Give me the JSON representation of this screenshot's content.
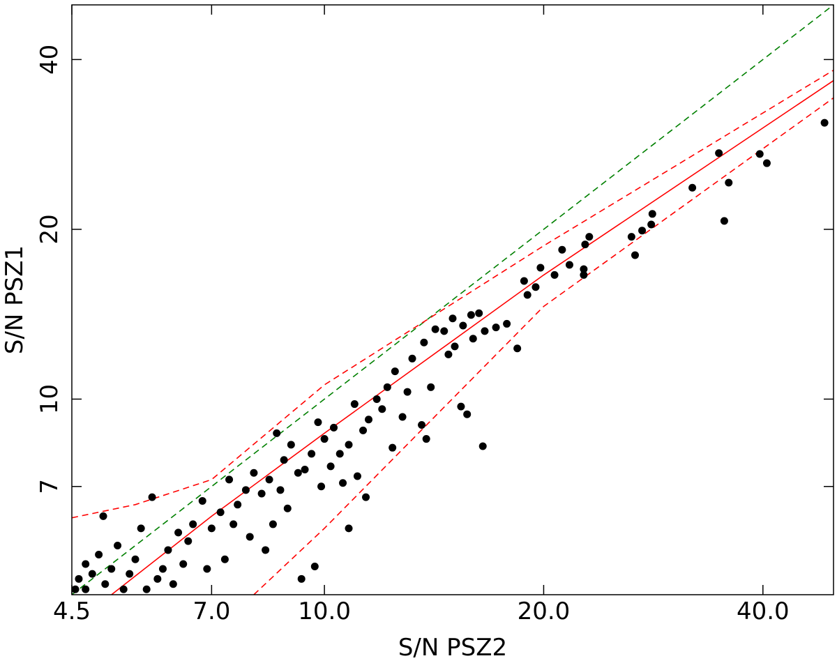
{
  "chart_data": {
    "type": "scatter",
    "x_label": "S/N PSZ2",
    "y_label": "S/N PSZ1",
    "xscale": "log",
    "yscale": "log",
    "xlim": [
      4.5,
      50
    ],
    "ylim": [
      4.5,
      50
    ],
    "xticks": [
      4.5,
      {
        "value": 7,
        "label": "7.0"
      },
      {
        "value": 10,
        "label": "10.0"
      },
      {
        "value": 20,
        "label": "20.0"
      },
      {
        "value": 40,
        "label": "40.0"
      }
    ],
    "yticks": [
      7,
      10,
      20,
      40
    ],
    "series": [
      {
        "type": "scatter",
        "color": "#000000",
        "x": [
          48.6,
          39.6,
          40.5,
          34.8,
          35.9,
          32.0,
          35.4,
          28.2,
          28.1,
          27.3,
          26.4,
          26.7,
          23.1,
          22.8,
          21.2,
          21.7,
          22.7,
          22.7,
          20.7,
          19.8,
          18.8,
          19.5,
          19.0,
          18.4,
          17.8,
          17.2,
          16.6,
          16.3,
          15.9,
          15.5,
          15.0,
          14.6,
          14.2,
          16.0,
          15.1,
          14.8,
          13.7,
          13.2,
          16.5,
          15.7,
          15.4,
          13.6,
          13.8,
          14.0,
          13.0,
          12.5,
          12.2,
          12.0,
          11.8,
          11.5,
          11.3,
          11.0,
          10.8,
          10.5,
          10.2,
          11.4,
          10.8,
          11.1,
          10.6,
          10.0,
          9.8,
          9.6,
          9.4,
          9.9,
          9.7,
          9.3,
          9.0,
          8.8,
          8.6,
          8.4,
          8.2,
          8.9,
          8.5,
          8.0,
          7.8,
          7.6,
          7.9,
          7.4,
          7.2,
          7.0,
          7.3,
          6.8,
          6.6,
          6.5,
          6.9,
          6.3,
          6.1,
          6.0,
          6.2,
          5.8,
          5.6,
          5.5,
          5.4,
          5.7,
          5.2,
          5.1,
          5.0,
          4.97,
          4.9,
          4.8,
          4.7,
          4.6,
          4.55,
          4.7,
          5.3,
          5.9,
          6.4,
          7.5,
          8.3,
          8.7,
          9.2,
          10.3,
          12.8,
          12.4
        ],
        "values": [
          30.9,
          27.2,
          26.2,
          27.3,
          24.2,
          23.7,
          20.7,
          21.3,
          20.4,
          19.9,
          19.4,
          18.0,
          19.4,
          18.8,
          18.4,
          17.3,
          16.6,
          17.0,
          16.6,
          17.1,
          16.2,
          15.8,
          15.3,
          12.3,
          13.6,
          13.4,
          13.2,
          14.2,
          14.1,
          13.5,
          13.9,
          13.2,
          13.3,
          12.8,
          12.4,
          12.0,
          12.6,
          11.8,
          8.25,
          9.4,
          9.7,
          9.0,
          8.5,
          10.5,
          10.3,
          11.2,
          10.5,
          9.6,
          10.0,
          9.2,
          8.8,
          9.8,
          8.3,
          8.0,
          7.6,
          6.7,
          5.9,
          7.3,
          7.1,
          8.5,
          9.1,
          8.0,
          7.5,
          7.0,
          5.05,
          4.8,
          8.3,
          7.8,
          8.7,
          7.2,
          6.8,
          6.4,
          6.0,
          7.4,
          6.9,
          6.5,
          5.7,
          7.2,
          6.3,
          5.9,
          5.2,
          6.6,
          6.0,
          5.6,
          5.0,
          5.8,
          5.4,
          5.0,
          4.7,
          6.7,
          5.9,
          5.2,
          4.9,
          4.6,
          5.5,
          5.0,
          4.7,
          6.2,
          5.3,
          4.9,
          5.1,
          4.8,
          4.6,
          4.6,
          4.6,
          4.8,
          5.1,
          6.0,
          5.4,
          6.9,
          7.4,
          8.9,
          9.3,
          8.2
        ]
      },
      {
        "type": "line",
        "color": "#008000",
        "dash": true,
        "x": [
          4.5,
          50
        ],
        "values": [
          4.5,
          50
        ]
      },
      {
        "type": "line",
        "color": "#ff0000",
        "dash": false,
        "x": [
          5.1,
          7,
          10,
          20,
          50
        ],
        "values": [
          4.5,
          6.2,
          8.7,
          16.6,
          36.7
        ]
      },
      {
        "type": "line",
        "color": "#ff0000",
        "dash": true,
        "x": [
          4.5,
          5.5,
          7,
          10,
          20,
          50
        ],
        "values": [
          6.16,
          6.5,
          7.2,
          10.6,
          18.7,
          38.3
        ]
      },
      {
        "type": "line",
        "color": "#ff0000",
        "dash": true,
        "x": [
          8.0,
          10,
          20,
          50
        ],
        "values": [
          4.5,
          5.9,
          14.6,
          34.2
        ]
      }
    ]
  }
}
